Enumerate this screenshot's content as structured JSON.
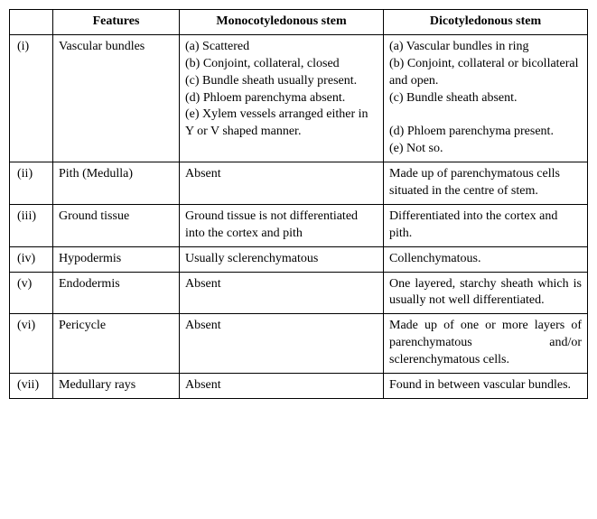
{
  "headers": {
    "blank": "",
    "features": "Features",
    "mono": "Monocotyledonous stem",
    "dicot": "Dicotyledonous stem"
  },
  "rows": [
    {
      "idx": "(i)",
      "feature": "Vascular bundles",
      "mono": "(a) Scattered\n(b) Conjoint, collateral, closed\n(c) Bundle sheath usually present.\n(d) Phloem parenchyma absent.\n(e) Xylem vessels arranged either in Y or V shaped manner.",
      "dicot": "(a) Vascular bundles in ring\n(b) Conjoint, collateral or bicollateral and open.\n(c) Bundle sheath absent.\n\n(d) Phloem parenchyma present.\n(e) Not so."
    },
    {
      "idx": "(ii)",
      "feature": "Pith (Medulla)",
      "mono": "Absent",
      "dicot": "Made up of parenchymatous cells situated in the centre of stem."
    },
    {
      "idx": "(iii)",
      "feature": "Ground tissue",
      "mono": "Ground tissue is not differentiated into the cortex and pith",
      "dicot": "Differentiated into the cortex and pith."
    },
    {
      "idx": "(iv)",
      "feature": "Hypodermis",
      "mono": "Usually sclerenchymatous",
      "dicot": "Collenchymatous."
    },
    {
      "idx": "(v)",
      "feature": "Endodermis",
      "mono": "Absent",
      "dicot": "One layered, starchy sheath which is usually not well differentiated.",
      "dicot_justify": true
    },
    {
      "idx": "(vi)",
      "feature": "Pericycle",
      "mono": "Absent",
      "dicot": "Made up of one or more layers of parenchymatous and/or sclerenchymatous cells.",
      "dicot_justify": true
    },
    {
      "idx": "(vii)",
      "feature": "Medullary rays",
      "mono": "Absent",
      "dicot": "Found in between vascular bundles."
    }
  ]
}
